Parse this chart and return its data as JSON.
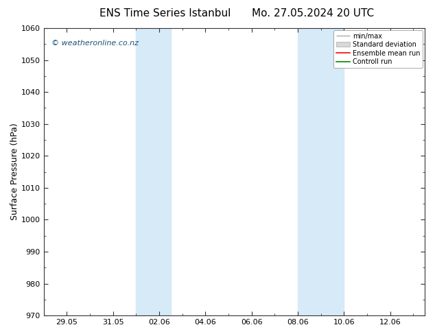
{
  "title_left": "ENS Time Series Istanbul",
  "title_right": "Mo. 27.05.2024 20 UTC",
  "ylabel": "Surface Pressure (hPa)",
  "ylim": [
    970,
    1060
  ],
  "yticks": [
    970,
    980,
    990,
    1000,
    1010,
    1020,
    1030,
    1040,
    1050,
    1060
  ],
  "xstart_days": -1.5,
  "xend_days": 16.5,
  "xtick_positions": [
    1,
    3,
    5,
    7,
    9,
    11,
    13,
    15
  ],
  "xtick_labels": [
    "29.05",
    "31.05",
    "02.06",
    "04.06",
    "06.06",
    "08.06",
    "10.06",
    "12.06"
  ],
  "shaded_bands": [
    {
      "xstart": 4.0,
      "xend": 5.5,
      "color": "#d6eaf8"
    },
    {
      "xstart": 11.0,
      "xend": 13.0,
      "color": "#d6eaf8"
    }
  ],
  "watermark": "© weatheronline.co.nz",
  "watermark_color": "#1a5276",
  "legend_labels": [
    "min/max",
    "Standard deviation",
    "Ensemble mean run",
    "Controll run"
  ],
  "legend_colors_line": [
    "#aaaaaa",
    "#cccccc",
    "#ff0000",
    "#008800"
  ],
  "background_color": "#ffffff",
  "plot_bg_color": "#ffffff",
  "title_fontsize": 11,
  "tick_fontsize": 8,
  "ylabel_fontsize": 9,
  "legend_fontsize": 7
}
